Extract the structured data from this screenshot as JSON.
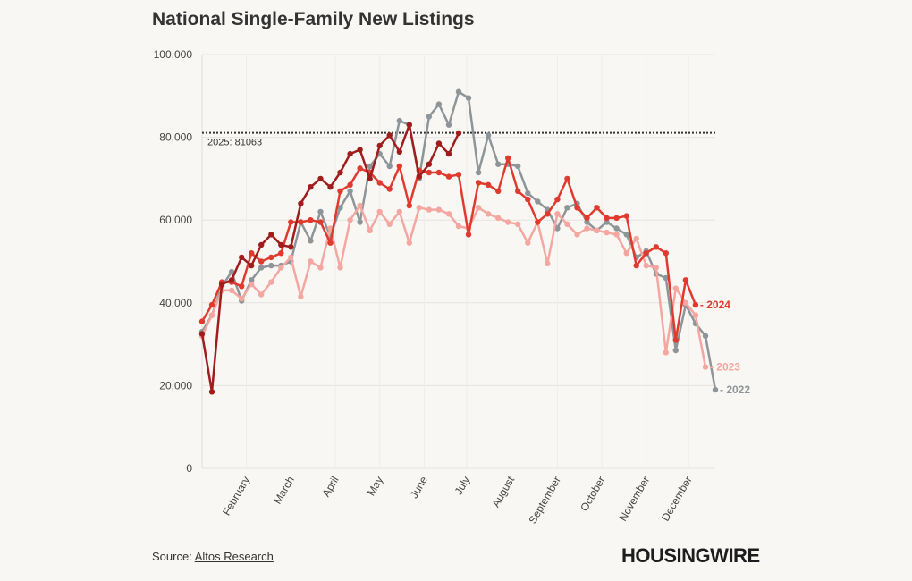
{
  "chart_data": {
    "type": "line",
    "title": "National Single-Family New Listings",
    "xlabel": "",
    "ylabel": "",
    "ylim": [
      0,
      100000
    ],
    "yticks": [
      "0",
      "20,000",
      "40,000",
      "60,000",
      "80,000",
      "100,000"
    ],
    "ytick_values": [
      0,
      20000,
      40000,
      60000,
      80000,
      100000
    ],
    "x_domain": [
      1,
      53
    ],
    "x_unit": "week of year",
    "month_labels": [
      "February",
      "March",
      "April",
      "May",
      "June",
      "July",
      "August",
      "September",
      "October",
      "November",
      "December"
    ],
    "month_weeks": [
      5.5,
      10,
      14.5,
      19,
      23.5,
      27.8,
      32.3,
      37,
      41.5,
      46,
      50.3
    ],
    "grid": true,
    "legend": "end-of-line labels",
    "reference_line": {
      "label": "2025: 81063",
      "value": 81063
    },
    "series": [
      {
        "name": "2022",
        "color": "#8e9599",
        "end_label": "- 2022",
        "values": [
          33000,
          37000,
          44000,
          47500,
          40500,
          45500,
          48500,
          49000,
          49000,
          50000,
          59500,
          55000,
          62000,
          56000,
          63000,
          67000,
          59500,
          73000,
          76000,
          73000,
          84000,
          83000,
          70000,
          85000,
          88000,
          83000,
          91000,
          89500,
          71500,
          80500,
          73500,
          73500,
          73000,
          66500,
          64500,
          62500,
          58000,
          63000,
          64000,
          59500,
          57500,
          59500,
          58000,
          56500,
          51000,
          52500,
          47000,
          46000,
          28500,
          39500,
          35000,
          32000,
          19000
        ]
      },
      {
        "name": "2023",
        "color": "#f4a6a0",
        "end_label": "- 2023",
        "values": [
          32000,
          37000,
          43000,
          43000,
          41000,
          44500,
          42000,
          45000,
          48500,
          51000,
          41500,
          50000,
          48500,
          58000,
          48500,
          60000,
          63500,
          57500,
          62000,
          59000,
          62000,
          54500,
          63000,
          62500,
          62500,
          61500,
          58500,
          58000,
          63000,
          61500,
          60500,
          59500,
          59000,
          54500,
          59500,
          49500,
          61500,
          59000,
          56500,
          58000,
          57500,
          57000,
          56500,
          52000,
          55500,
          49000,
          48500,
          28000,
          43500,
          40000,
          37000,
          24500
        ]
      },
      {
        "name": "2024",
        "color": "#e03a2f",
        "end_label": "- 2024",
        "values": [
          35500,
          39500,
          45000,
          45000,
          44000,
          52000,
          50000,
          51000,
          52000,
          59500,
          59500,
          60000,
          59500,
          54500,
          67000,
          68500,
          72500,
          71500,
          69000,
          67500,
          73000,
          63500,
          72000,
          71500,
          71500,
          70500,
          71000,
          56500,
          69000,
          68500,
          67000,
          75000,
          67000,
          65000,
          59500,
          61500,
          65000,
          70000,
          63000,
          60500,
          63000,
          60500,
          60500,
          61000,
          49000,
          52000,
          53500,
          52000,
          31000,
          45500,
          39500
        ]
      },
      {
        "name": "2025",
        "color": "#9f1d1c",
        "end_label": "",
        "values": [
          32500,
          18500,
          44500,
          45500,
          51000,
          49000,
          54000,
          56500,
          54000,
          53500,
          64000,
          68000,
          70000,
          68000,
          71500,
          76000,
          77000,
          70000,
          78000,
          80500,
          76500,
          83000,
          70500,
          73500,
          78500,
          76000,
          81000
        ]
      }
    ]
  },
  "source": {
    "prefix": "Source: ",
    "link_text": "Altos Research"
  },
  "brand": {
    "logo_text": "HOUSINGWIRE"
  }
}
